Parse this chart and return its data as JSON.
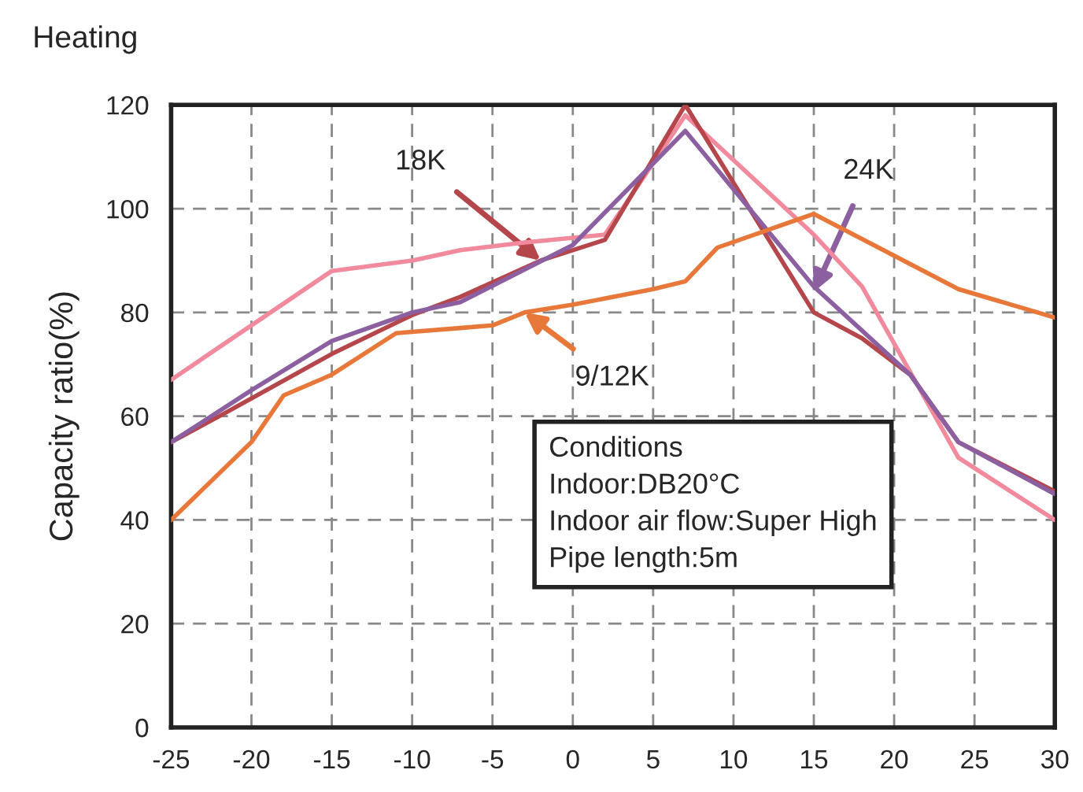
{
  "chart_data": {
    "type": "line",
    "title": "Heating",
    "ylabel": "Capacity ratio(%)",
    "xlim": [
      -25,
      30
    ],
    "xticks": [
      -25,
      -20,
      -15,
      -10,
      -5,
      0,
      5,
      10,
      15,
      20,
      25,
      30
    ],
    "ylim": [
      0,
      120
    ],
    "yticks": [
      0,
      20,
      40,
      60,
      80,
      100,
      120
    ],
    "grid": true,
    "marker": "none",
    "line_style": "solid",
    "series": [
      {
        "color": "#f08a9c",
        "x": [
          -25,
          -15,
          -10,
          -7,
          -3,
          2,
          7,
          15,
          18,
          24,
          30
        ],
        "values": [
          67,
          88,
          90,
          92,
          93.5,
          95,
          118,
          95,
          85,
          52,
          40
        ]
      },
      {
        "color": "#b5464b",
        "x": [
          -25,
          -22,
          -15,
          -10,
          -7,
          -2,
          2,
          7,
          15,
          18,
          21,
          24,
          30
        ],
        "values": [
          55,
          60,
          72,
          79.5,
          83,
          90,
          94,
          120,
          80,
          75,
          68,
          55,
          45.5
        ]
      },
      {
        "color": "#8c5fa0",
        "x": [
          -25,
          -20,
          -15,
          -10,
          -7,
          0,
          7,
          15,
          21,
          24,
          30
        ],
        "values": [
          55,
          65,
          74.5,
          80,
          82,
          93,
          115,
          85,
          68,
          55,
          45
        ]
      },
      {
        "color": "#e8783a",
        "x": [
          -25,
          -20,
          -18,
          -15,
          -11,
          -7,
          -5,
          -3,
          0,
          5,
          7,
          9,
          15,
          24,
          30
        ],
        "values": [
          40,
          55,
          64,
          68,
          76,
          77,
          77.5,
          80,
          81.5,
          84.5,
          86,
          92.5,
          99,
          84.5,
          79
        ]
      }
    ],
    "annotations": [
      {
        "text": "18K",
        "x": -2,
        "y": 90
      },
      {
        "text": "24K",
        "x": 15,
        "y": 84
      },
      {
        "text": "9/12K",
        "x": -3,
        "y": 80
      },
      "Conditions\nIndoor:DB20°C\nIndoor air flow:Super High\nPipe length:5m"
    ]
  }
}
